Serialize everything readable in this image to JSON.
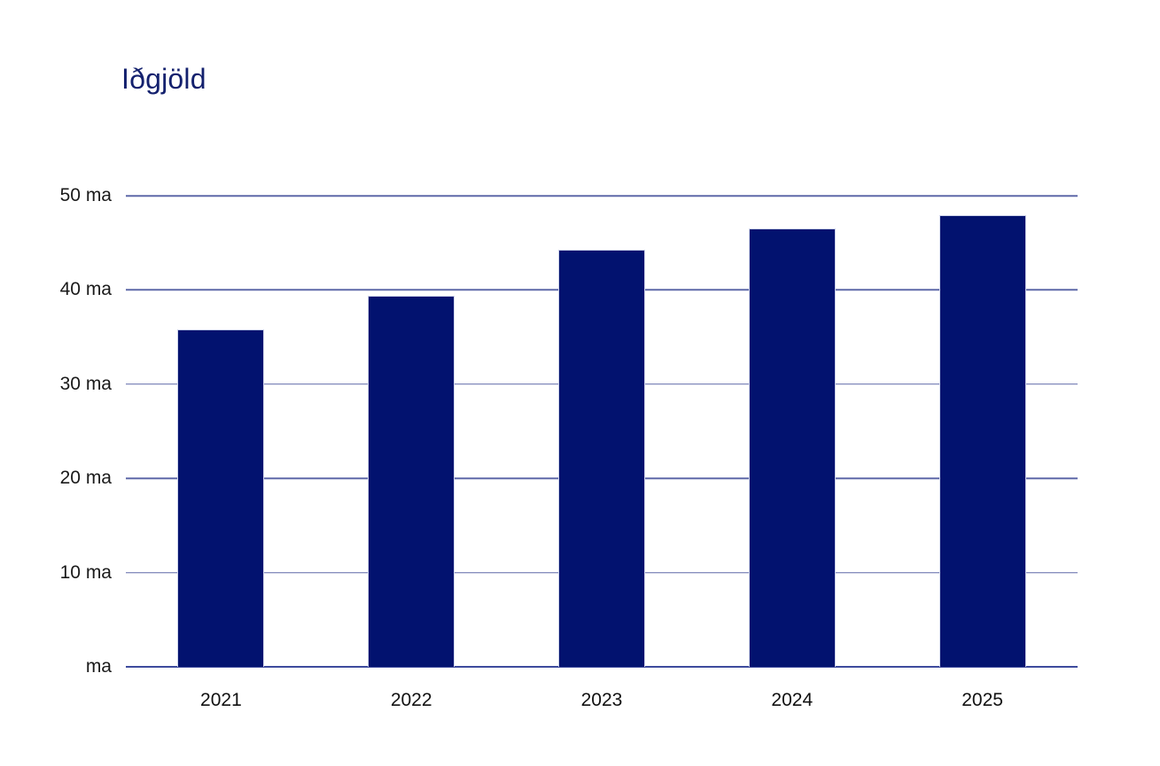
{
  "title": "Iðgjöld",
  "colors": {
    "bar": "#02126F",
    "title": "#14216E",
    "gridline": "#5E68A8",
    "axis": "#3E4B9D",
    "tick_text": "#1A1A1A"
  },
  "chart_data": {
    "type": "bar",
    "title": "Iðgjöld",
    "categories": [
      "2021",
      "2022",
      "2023",
      "2024",
      "2025"
    ],
    "values": [
      35.8,
      39.4,
      44.3,
      46.5,
      47.9
    ],
    "unit": "ma",
    "xlabel": "",
    "ylabel": "",
    "ylim": [
      0,
      50
    ],
    "yticks": [
      {
        "value": 50,
        "label": "50 ma"
      },
      {
        "value": 40,
        "label": "40 ma"
      },
      {
        "value": 30,
        "label": "30 ma"
      },
      {
        "value": 20,
        "label": "20 ma"
      },
      {
        "value": 10,
        "label": "10 ma"
      },
      {
        "value": 0,
        "label": "ma"
      }
    ],
    "grid": true,
    "legend": false
  }
}
